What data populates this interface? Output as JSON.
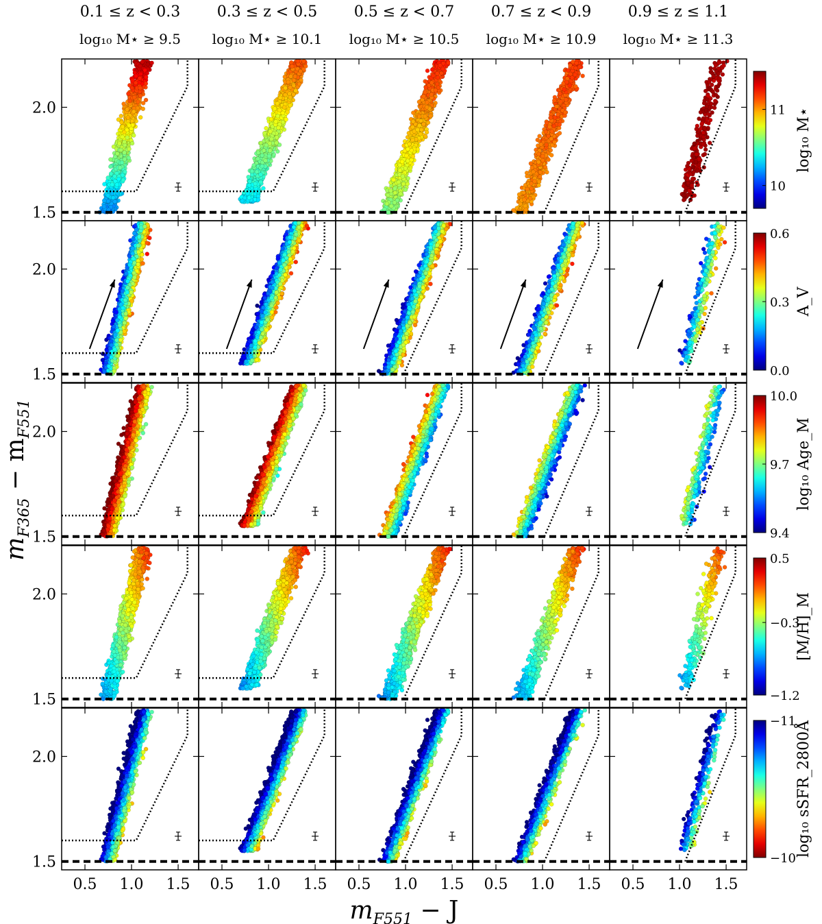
{
  "figure": {
    "xlabel_main": "m",
    "xlabel_sub": "F551",
    "xlabel_rest": " − J",
    "ylabel_main": "m",
    "ylabel_sub1": "F365",
    "ylabel_mid": " − m",
    "ylabel_sub2": "F551"
  },
  "columns": [
    {
      "z_label": "0.1 ≤ z < 0.3",
      "mass_label": "log₁₀ M⋆ ≥ 9.5"
    },
    {
      "z_label": "0.3 ≤ z < 0.5",
      "mass_label": "log₁₀ M⋆ ≥ 10.1"
    },
    {
      "z_label": "0.5 ≤ z < 0.7",
      "mass_label": "log₁₀ M⋆ ≥ 10.5"
    },
    {
      "z_label": "0.7 ≤ z < 0.9",
      "mass_label": "log₁₀ M⋆ ≥ 10.9"
    },
    {
      "z_label": "0.9 ≤ z ≤ 1.1",
      "mass_label": "log₁₀ M⋆ ≥ 11.3"
    }
  ],
  "rows": [
    {
      "colorbar_label": "log₁₀ M⋆",
      "ticks": [
        "10",
        "11"
      ],
      "tick_values": [
        10,
        11
      ],
      "range": [
        9.7,
        11.5
      ]
    },
    {
      "colorbar_label": "A_V",
      "ticks": [
        "0.0",
        "0.3",
        "0.6"
      ],
      "tick_values": [
        0.0,
        0.3,
        0.6
      ],
      "range": [
        0.0,
        0.6
      ]
    },
    {
      "colorbar_label": "log₁₀ Age_M",
      "ticks": [
        "9.4",
        "9.7",
        "10.0"
      ],
      "tick_values": [
        9.4,
        9.7,
        10.0
      ],
      "range": [
        9.4,
        10.0
      ]
    },
    {
      "colorbar_label": "[M/H]_M",
      "ticks": [
        "−1.2",
        "−0.3",
        "0.5"
      ],
      "tick_values": [
        -1.2,
        -0.3,
        0.5
      ],
      "range": [
        -1.2,
        0.5
      ]
    },
    {
      "colorbar_label": "log₁₀ sSFR_2800Å",
      "ticks": [
        "−11",
        "−10"
      ],
      "tick_values": [
        -11,
        -10
      ],
      "range": [
        -11,
        -10
      ],
      "reversed": true
    }
  ],
  "chart_data": {
    "type": "scatter",
    "layout": "grid 5 rows × 5 columns",
    "xlim": [
      0.25,
      1.72
    ],
    "ylim": [
      1.46,
      2.23
    ],
    "x_ticks": [
      0.5,
      1.0,
      1.5
    ],
    "x_tick_labels": [
      "0.5",
      "1.0",
      "1.5"
    ],
    "y_ticks": [
      1.5,
      2.0
    ],
    "y_tick_labels": [
      "1.5",
      "2.0"
    ],
    "colormap": "jet",
    "dashed_line_y": 1.5,
    "dotted_selection_boundary": [
      [
        0.25,
        1.6
      ],
      [
        1.05,
        1.6
      ],
      [
        1.6,
        2.1
      ],
      [
        1.6,
        2.23
      ]
    ],
    "error_bar": {
      "x": 1.5,
      "y": 1.62
    },
    "reddening_arrow": {
      "from": [
        0.55,
        1.62
      ],
      "to": [
        0.82,
        1.95
      ]
    },
    "clouds": [
      {
        "x_min": 0.62,
        "x_max": 1.32,
        "y_min": 1.5,
        "y_max": 2.22,
        "n": 1200
      },
      {
        "x_min": 0.6,
        "x_max": 1.6,
        "y_min": 1.55,
        "y_max": 2.22,
        "n": 1700
      },
      {
        "x_min": 0.62,
        "x_max": 1.68,
        "y_min": 1.5,
        "y_max": 2.22,
        "n": 1200
      },
      {
        "x_min": 0.58,
        "x_max": 1.66,
        "y_min": 1.5,
        "y_max": 2.22,
        "n": 900
      },
      {
        "x_min": 0.95,
        "x_max": 1.6,
        "y_min": 1.55,
        "y_max": 2.22,
        "n": 260
      }
    ]
  }
}
